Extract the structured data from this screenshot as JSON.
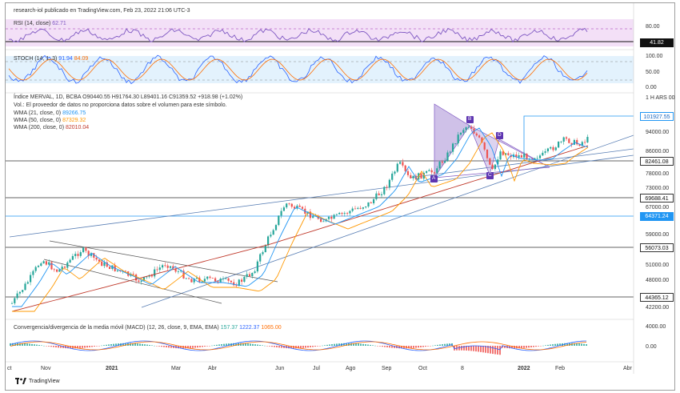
{
  "header": {
    "source": "research-iol publicado en TradingView.com, Feb 23, 2022 21:06 UTC-3"
  },
  "rsi": {
    "label": "RSI (14, close)",
    "value": "62.71",
    "ticks": [
      "80.00",
      "41.82"
    ]
  },
  "stoch": {
    "label": "STOCH (14, 1, 3)",
    "k": "91.94",
    "d": "84.09",
    "ticks": [
      "100.00",
      "50.00",
      "0.00"
    ]
  },
  "price": {
    "title": "Índice MERVAL, 1D, BCBA",
    "ohlc": "O90440.55 H91764.30 L89401.16 C91359.52 +918.98 (+1.02%)",
    "volume_note": "Vol.: El proveedor de datos no proporciona datos sobre el volumen para este símbolo.",
    "wma21_label": "WMA (21, close, 0)",
    "wma21_value": "89266.75",
    "wma50_label": "WMA (50, close, 0)",
    "wma50_value": "87329.32",
    "wma200_label": "WMA (200, close, 0)",
    "wma200_value": "82010.04",
    "currency_label": "1 H ARS 00",
    "axis_ticks": [
      "94000.00",
      "86000.00",
      "78000.00",
      "73000.00",
      "67000.00",
      "59000.00",
      "51000.00",
      "48000.00",
      "42200.00"
    ],
    "levels": [
      "101927.55",
      "82461.08",
      "69688.41",
      "64371.24",
      "56073.03",
      "44365.12"
    ],
    "pattern_labels": [
      "A",
      "B",
      "C",
      "D"
    ]
  },
  "macd": {
    "label": "Convergencia/divergencia de la media móvil (MACD) (12, 26, close, 9, EMA, EMA)",
    "v1": "157.37",
    "v2": "1222.37",
    "v3": "1065.00",
    "ticks": [
      "4000.00",
      "0.00"
    ]
  },
  "xaxis": [
    "ct",
    "Nov",
    "2021",
    "Mar",
    "Abr",
    "Jun",
    "Jul",
    "Ago",
    "Sep",
    "Oct",
    "8",
    "2022",
    "Feb",
    "Abr"
  ],
  "brand": "TradingView",
  "colors": {
    "rsi": "#7e57c2",
    "rsi_band": "#f3e0f7",
    "stoch_k": "#2962ff",
    "stoch_d": "#ff6d00",
    "stoch_band": "#e3f2fd",
    "wma21": "#2196f3",
    "wma50": "#ff9800",
    "wma200": "#c0392b",
    "up": "#26a69a",
    "down": "#ef5350",
    "pattern": "#9575cd"
  }
}
